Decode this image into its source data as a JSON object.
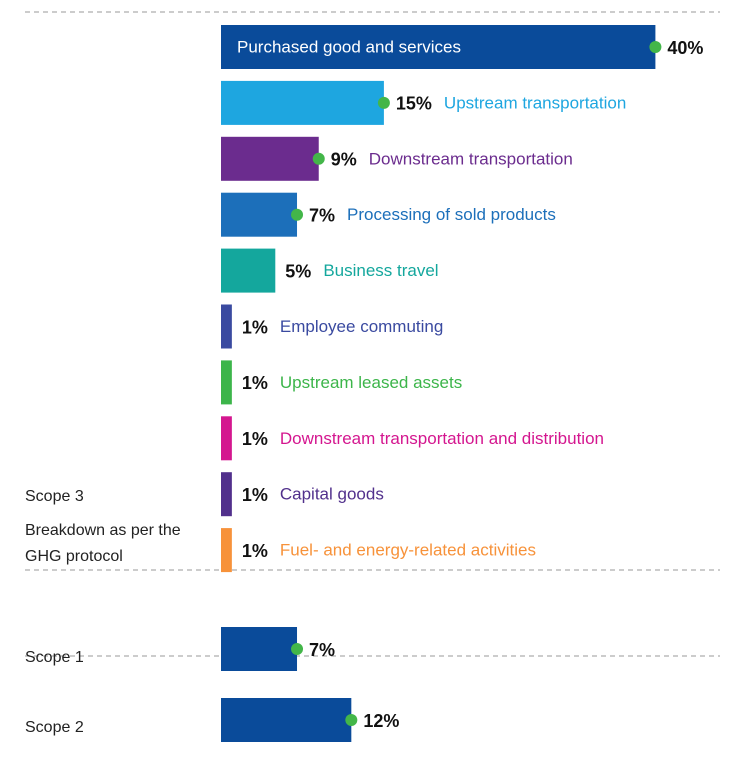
{
  "chart_data": [
    {
      "type": "bar",
      "orientation": "horizontal",
      "title": "Scope 3",
      "subtitle": "Breakdown as per the GHG protocol",
      "categories": [
        "Purchased good and services",
        "Upstream transportation",
        "Downstream transportation",
        "Processing of sold products",
        "Business travel",
        "Employee commuting",
        "Upstream leased assets",
        "Downstream transportation and distribution",
        "Capital goods",
        "Fuel- and energy-related activities"
      ],
      "values": [
        40,
        15,
        9,
        7,
        5,
        1,
        1,
        1,
        1,
        1
      ],
      "value_labels": [
        "40%",
        "15%",
        "9%",
        "7%",
        "5%",
        "1%",
        "1%",
        "1%",
        "1%",
        "1%"
      ],
      "colors": [
        "#0a4b9a",
        "#1ea6e0",
        "#6b2c8e",
        "#1c6fba",
        "#14a79d",
        "#3a4aa0",
        "#3cb54a",
        "#d4168f",
        "#51308c",
        "#f7923a"
      ],
      "marker_color": "#43b649"
    },
    {
      "type": "bar",
      "orientation": "horizontal",
      "title": "Scope 1",
      "categories": [
        null
      ],
      "values": [
        7
      ],
      "value_labels": [
        "7%"
      ],
      "colors": [
        "#0a4b9a"
      ],
      "marker_color": "#43b649"
    },
    {
      "type": "bar",
      "orientation": "horizontal",
      "title": "Scope 2",
      "categories": [
        null
      ],
      "values": [
        12
      ],
      "value_labels": [
        "12%"
      ],
      "colors": [
        "#0a4b9a"
      ],
      "marker_color": "#43b649"
    }
  ]
}
